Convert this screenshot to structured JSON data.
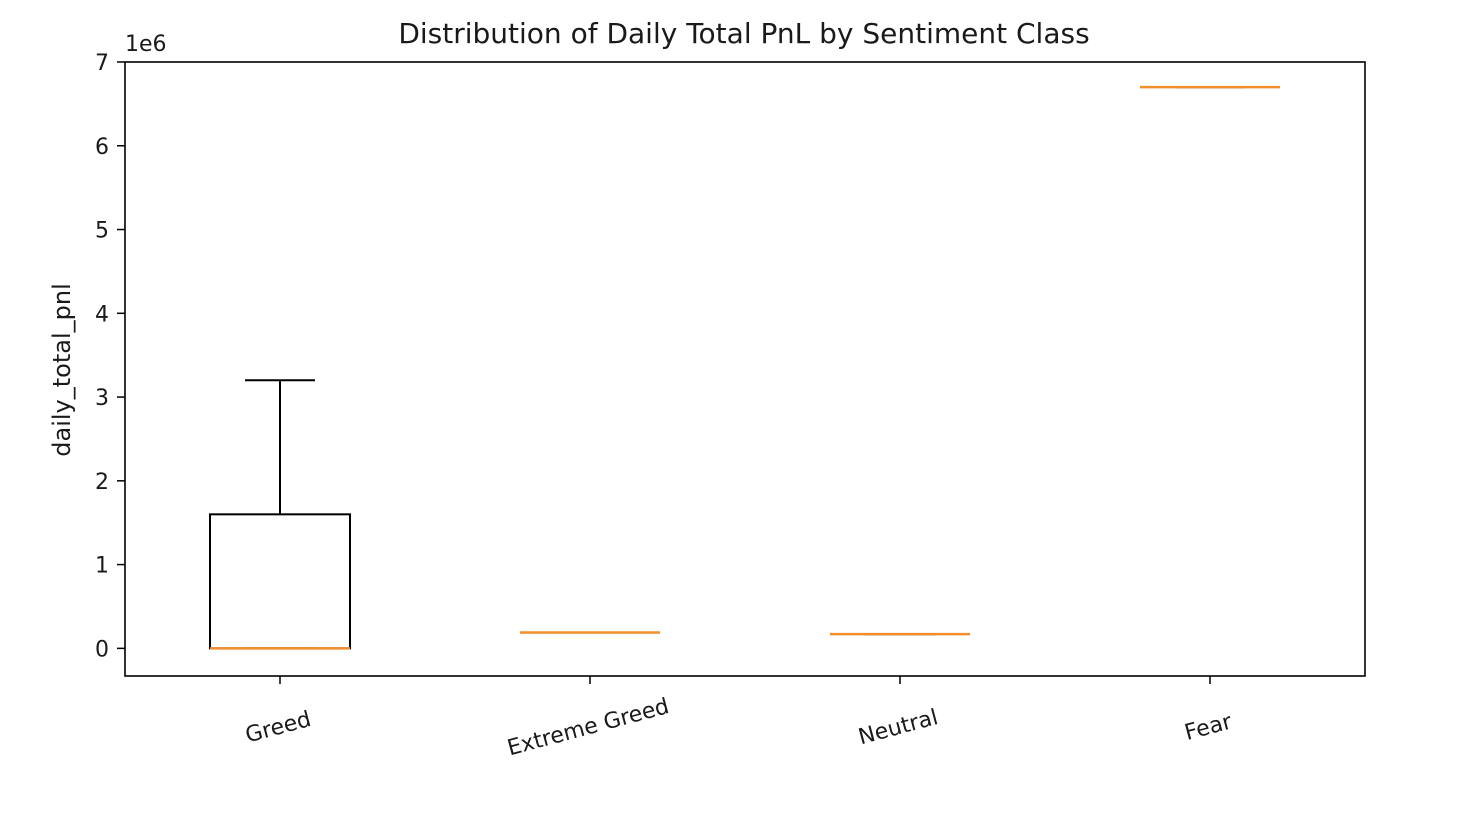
{
  "chart_data": {
    "type": "box",
    "title": "Distribution of Daily Total PnL by Sentiment Class",
    "ylabel": "daily_total_pnl",
    "xlabel": "",
    "y_offset_label": "1e6",
    "y_scale_multiplier": 1000000,
    "ylim": [
      -0.33,
      7.0
    ],
    "y_ticks": [
      0,
      1,
      2,
      3,
      4,
      5,
      6,
      7
    ],
    "grid": false,
    "categories": [
      "Greed",
      "Extreme Greed",
      "Neutral",
      "Fear"
    ],
    "boxes": [
      {
        "category": "Greed",
        "whisker_low": 0.0,
        "q1": 0.0,
        "median": 0.0,
        "q3": 1.6,
        "whisker_high": 3.2
      },
      {
        "category": "Extreme Greed",
        "whisker_low": 0.19,
        "q1": 0.19,
        "median": 0.19,
        "q3": 0.19,
        "whisker_high": 0.19
      },
      {
        "category": "Neutral",
        "whisker_low": 0.17,
        "q1": 0.17,
        "median": 0.17,
        "q3": 0.17,
        "whisker_high": 0.17
      },
      {
        "category": "Fear",
        "whisker_low": 6.7,
        "q1": 6.7,
        "median": 6.7,
        "q3": 6.7,
        "whisker_high": 6.7
      }
    ],
    "colors": {
      "box": "#000000",
      "median": "#f28e2b"
    }
  }
}
